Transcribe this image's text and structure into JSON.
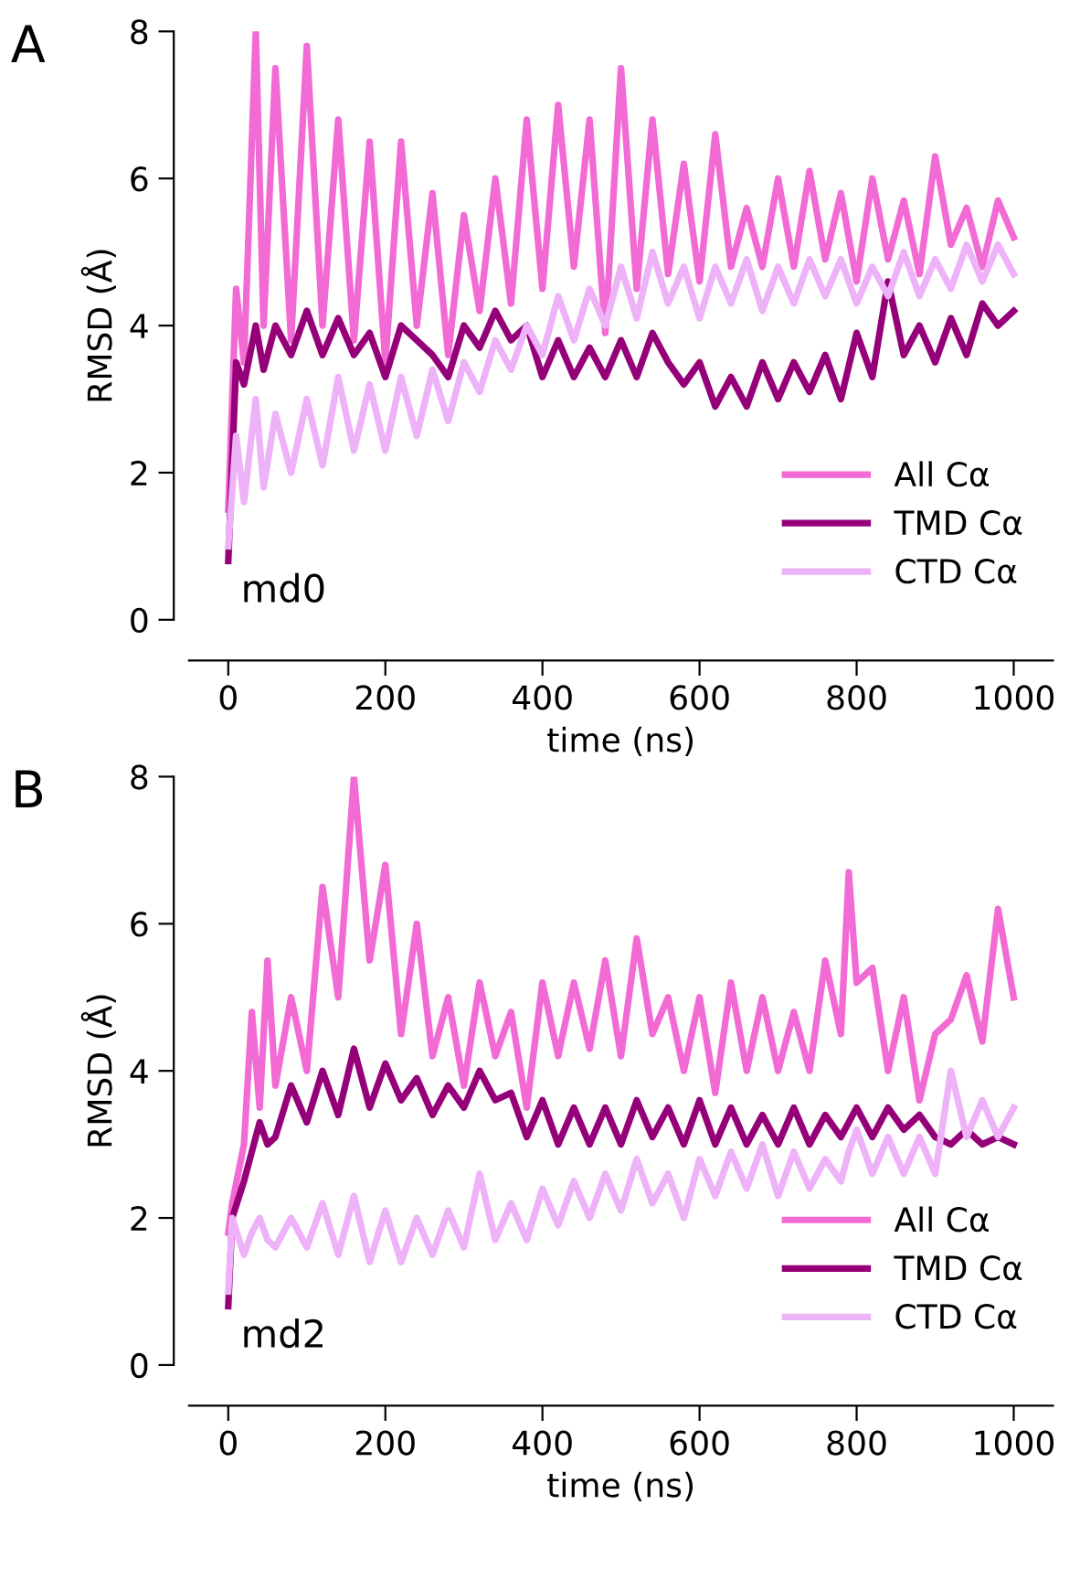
{
  "chart_data": [
    {
      "type": "line",
      "xlabel": "time (ns)",
      "ylabel": "RMSD (Å)",
      "xlim": [
        -50,
        1050
      ],
      "ylim": [
        0,
        8
      ],
      "xticks": [
        0,
        200,
        400,
        600,
        800,
        1000
      ],
      "yticks": [
        0,
        2,
        4,
        6,
        8
      ],
      "legend": "bottom right",
      "grid": false,
      "annotations": [
        "A",
        "md0"
      ],
      "x": [
        0,
        10,
        20,
        35,
        45,
        60,
        80,
        100,
        120,
        140,
        160,
        180,
        200,
        220,
        240,
        260,
        280,
        300,
        320,
        340,
        360,
        380,
        400,
        420,
        440,
        460,
        480,
        500,
        520,
        540,
        560,
        580,
        600,
        620,
        640,
        660,
        680,
        700,
        720,
        740,
        760,
        780,
        800,
        820,
        840,
        860,
        880,
        900,
        920,
        940,
        960,
        980,
        1000
      ],
      "series": [
        {
          "name": "All Cα",
          "color": "#f26ad4",
          "values": [
            1.5,
            4.5,
            3.5,
            8,
            4,
            7.5,
            3.8,
            7.8,
            4,
            6.8,
            3.8,
            6.5,
            3.5,
            6.5,
            4,
            5.8,
            3.6,
            5.5,
            4.2,
            6,
            4.3,
            6.8,
            4.5,
            7,
            4.8,
            6.8,
            3.9,
            7.5,
            4.5,
            6.8,
            4.7,
            6.2,
            4.6,
            6.6,
            4.8,
            5.6,
            4.8,
            6,
            4.8,
            6.1,
            4.9,
            5.8,
            4.6,
            6,
            4.9,
            5.7,
            4.7,
            6.3,
            5.1,
            5.6,
            4.8,
            5.7,
            5.2
          ]
        },
        {
          "name": "TMD Cα",
          "color": "#950079",
          "values": [
            0.8,
            3.5,
            3.2,
            4,
            3.4,
            4,
            3.6,
            4.2,
            3.6,
            4.1,
            3.6,
            3.9,
            3.3,
            4,
            3.8,
            3.6,
            3.3,
            4,
            3.7,
            4.2,
            3.8,
            4,
            3.3,
            3.8,
            3.3,
            3.7,
            3.3,
            3.8,
            3.3,
            3.9,
            3.5,
            3.2,
            3.5,
            2.9,
            3.3,
            2.9,
            3.5,
            3.0,
            3.5,
            3.1,
            3.6,
            3.0,
            3.9,
            3.3,
            4.6,
            3.6,
            4,
            3.5,
            4.1,
            3.6,
            4.3,
            4,
            4.2
          ]
        },
        {
          "name": "CTD Cα",
          "color": "#eeb2f8",
          "values": [
            1,
            2.5,
            1.6,
            3,
            1.8,
            2.8,
            2,
            3,
            2.1,
            3.3,
            2.3,
            3.2,
            2.3,
            3.3,
            2.5,
            3.4,
            2.7,
            3.5,
            3.1,
            3.8,
            3.4,
            4,
            3.6,
            4.4,
            3.8,
            4.5,
            4,
            4.8,
            4.1,
            5,
            4.3,
            4.8,
            4.1,
            4.8,
            4.3,
            4.9,
            4.2,
            4.8,
            4.3,
            4.9,
            4.4,
            4.9,
            4.3,
            4.8,
            4.4,
            5.0,
            4.4,
            4.9,
            4.5,
            5.1,
            4.6,
            5.1,
            4.7
          ]
        }
      ]
    },
    {
      "type": "line",
      "xlabel": "time (ns)",
      "ylabel": "RMSD (Å)",
      "xlim": [
        -50,
        1050
      ],
      "ylim": [
        0,
        8
      ],
      "xticks": [
        0,
        200,
        400,
        600,
        800,
        1000
      ],
      "yticks": [
        0,
        2,
        4,
        6,
        8
      ],
      "legend": "bottom right",
      "grid": false,
      "annotations": [
        "B",
        "md2"
      ],
      "x": [
        0,
        5,
        20,
        30,
        40,
        50,
        60,
        80,
        100,
        120,
        140,
        160,
        180,
        200,
        220,
        240,
        260,
        280,
        300,
        320,
        340,
        360,
        380,
        400,
        420,
        440,
        460,
        480,
        500,
        520,
        540,
        560,
        580,
        600,
        620,
        640,
        660,
        680,
        700,
        720,
        740,
        760,
        780,
        790,
        800,
        820,
        840,
        860,
        880,
        900,
        920,
        940,
        960,
        980,
        1000
      ],
      "series": [
        {
          "name": "All Cα",
          "color": "#f26ad4",
          "values": [
            1.8,
            2.2,
            3,
            4.8,
            3.5,
            5.5,
            3.8,
            5,
            4,
            6.5,
            5,
            8,
            5.5,
            6.8,
            4.5,
            6,
            4.2,
            5,
            3.8,
            5.2,
            4.2,
            4.8,
            3.5,
            5.2,
            4.2,
            5.2,
            4.3,
            5.5,
            4.2,
            5.8,
            4.5,
            5,
            4,
            5,
            3.7,
            5.2,
            4,
            5,
            4,
            4.8,
            4,
            5.5,
            4.5,
            6.7,
            5.2,
            5.4,
            4,
            5,
            3.6,
            4.5,
            4.7,
            5.3,
            4.4,
            6.2,
            5
          ]
        },
        {
          "name": "TMD Cα",
          "color": "#950079",
          "values": [
            0.8,
            2.0,
            2.5,
            2.9,
            3.3,
            3.0,
            3.1,
            3.8,
            3.3,
            4,
            3.4,
            4.3,
            3.5,
            4.1,
            3.6,
            3.9,
            3.4,
            3.8,
            3.5,
            4.0,
            3.6,
            3.7,
            3.1,
            3.6,
            3.0,
            3.5,
            3.0,
            3.5,
            3.0,
            3.6,
            3.1,
            3.5,
            3.0,
            3.6,
            3.0,
            3.5,
            3.0,
            3.4,
            3.0,
            3.5,
            3.0,
            3.4,
            3.1,
            3.3,
            3.5,
            3.1,
            3.5,
            3.2,
            3.4,
            3.1,
            3.0,
            3.2,
            3.0,
            3.1,
            3.0
          ]
        },
        {
          "name": "CTD Cα",
          "color": "#eeb2f8",
          "values": [
            1,
            2,
            1.5,
            1.8,
            2,
            1.7,
            1.6,
            2,
            1.6,
            2.2,
            1.5,
            2.3,
            1.4,
            2.1,
            1.4,
            2,
            1.5,
            2.1,
            1.6,
            2.6,
            1.7,
            2.2,
            1.7,
            2.4,
            1.9,
            2.5,
            2,
            2.6,
            2.1,
            2.8,
            2.2,
            2.6,
            2,
            2.8,
            2.3,
            2.9,
            2.4,
            3,
            2.3,
            2.9,
            2.4,
            2.8,
            2.5,
            2.9,
            3.2,
            2.6,
            3.1,
            2.6,
            3.1,
            2.6,
            4.0,
            3.1,
            3.6,
            3.1,
            3.5
          ]
        }
      ]
    }
  ]
}
